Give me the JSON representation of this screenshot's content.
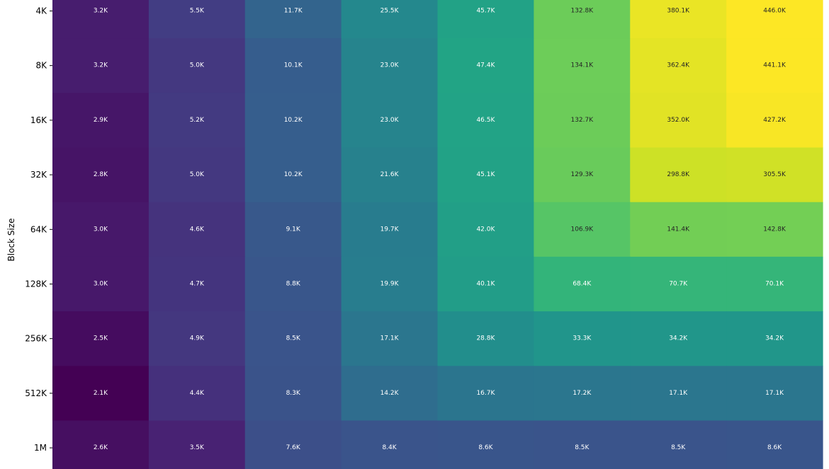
{
  "chart_data": {
    "type": "heatmap",
    "ylabel": "Block Size",
    "rows": [
      "4K",
      "8K",
      "16K",
      "32K",
      "64K",
      "128K",
      "256K",
      "512K",
      "1M"
    ],
    "values": [
      [
        3.2,
        5.5,
        11.7,
        25.5,
        45.7,
        132.8,
        380.1,
        446.0
      ],
      [
        3.2,
        5.0,
        10.1,
        23.0,
        47.4,
        134.1,
        362.4,
        441.1
      ],
      [
        2.9,
        5.2,
        10.2,
        23.0,
        46.5,
        132.7,
        352.0,
        427.2
      ],
      [
        2.8,
        5.0,
        10.2,
        21.6,
        45.1,
        129.3,
        298.8,
        305.5
      ],
      [
        3.0,
        4.6,
        9.1,
        19.7,
        42.0,
        106.9,
        141.4,
        142.8
      ],
      [
        3.0,
        4.7,
        8.8,
        19.9,
        40.1,
        68.4,
        70.7,
        70.1
      ],
      [
        2.5,
        4.9,
        8.5,
        17.1,
        28.8,
        33.3,
        34.2,
        34.2
      ],
      [
        2.1,
        4.4,
        8.3,
        14.2,
        16.7,
        17.2,
        17.1,
        17.1
      ],
      [
        2.6,
        3.5,
        7.6,
        8.4,
        8.6,
        8.5,
        8.5,
        8.6
      ]
    ],
    "labels": [
      [
        "3.2K",
        "5.5K",
        "11.7K",
        "25.5K",
        "45.7K",
        "132.8K",
        "380.1K",
        "446.0K"
      ],
      [
        "3.2K",
        "5.0K",
        "10.1K",
        "23.0K",
        "47.4K",
        "134.1K",
        "362.4K",
        "441.1K"
      ],
      [
        "2.9K",
        "5.2K",
        "10.2K",
        "23.0K",
        "46.5K",
        "132.7K",
        "352.0K",
        "427.2K"
      ],
      [
        "2.8K",
        "5.0K",
        "10.2K",
        "21.6K",
        "45.1K",
        "129.3K",
        "298.8K",
        "305.5K"
      ],
      [
        "3.0K",
        "4.6K",
        "9.1K",
        "19.7K",
        "42.0K",
        "106.9K",
        "141.4K",
        "142.8K"
      ],
      [
        "3.0K",
        "4.7K",
        "8.8K",
        "19.9K",
        "40.1K",
        "68.4K",
        "70.7K",
        "70.1K"
      ],
      [
        "2.5K",
        "4.9K",
        "8.5K",
        "17.1K",
        "28.8K",
        "33.3K",
        "34.2K",
        "34.2K"
      ],
      [
        "2.1K",
        "4.4K",
        "8.3K",
        "14.2K",
        "16.7K",
        "17.2K",
        "17.1K",
        "17.1K"
      ],
      [
        "2.6K",
        "3.5K",
        "7.6K",
        "8.4K",
        "8.6K",
        "8.5K",
        "8.5K",
        "8.6K"
      ]
    ],
    "colormap": "viridis",
    "scale": "log",
    "grid": false
  }
}
